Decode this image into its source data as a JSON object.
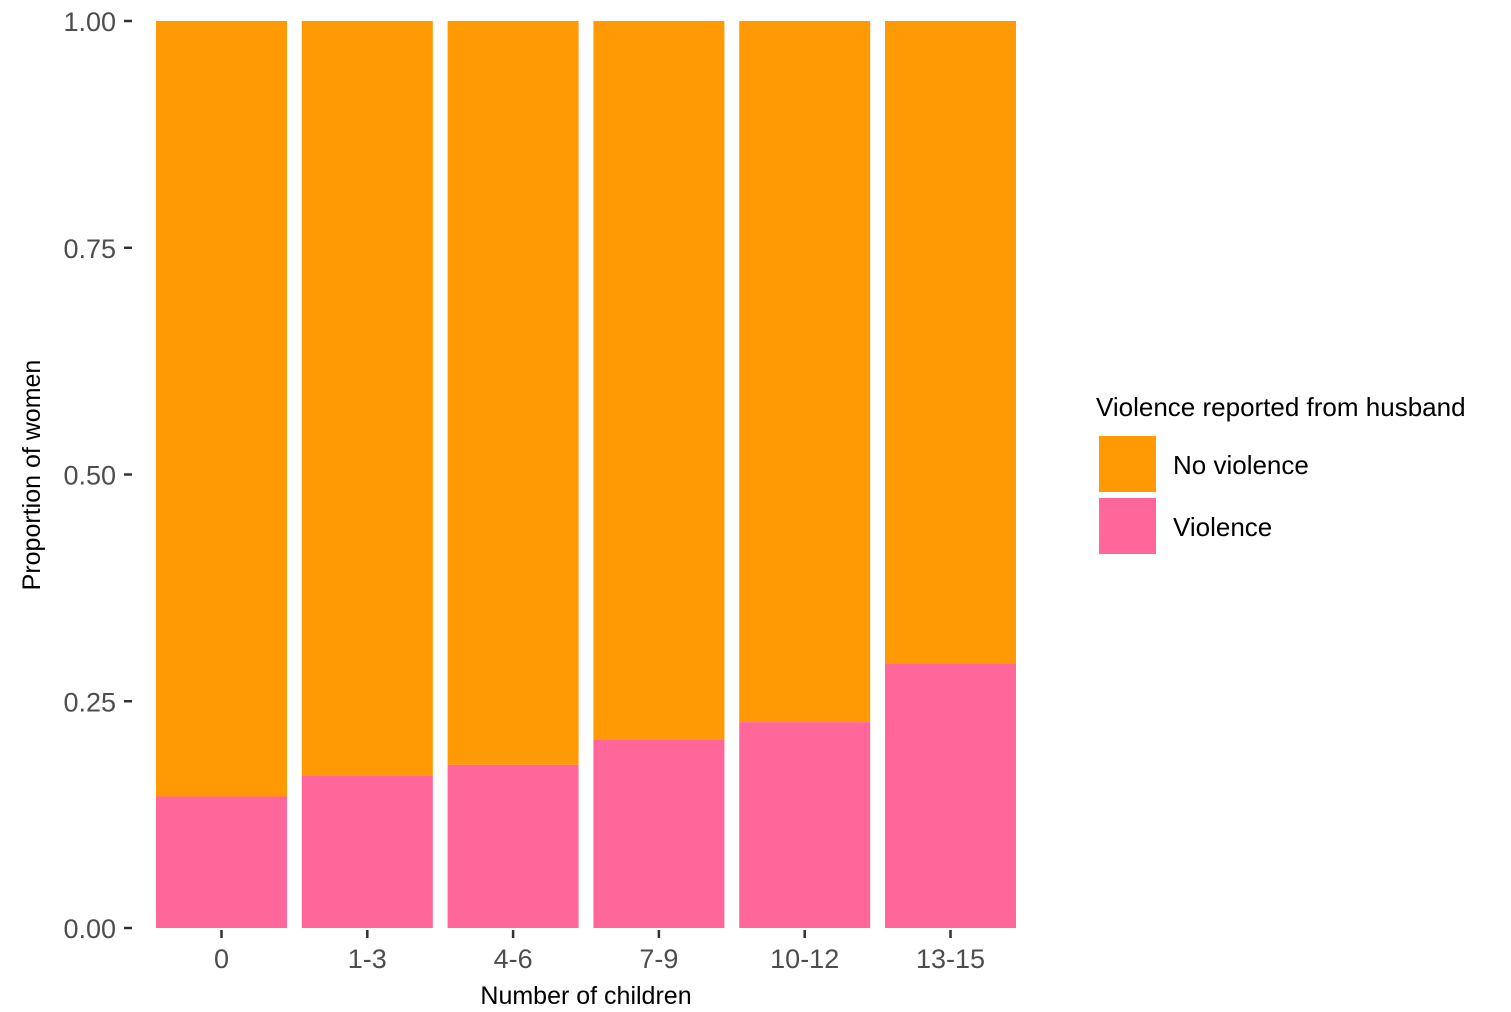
{
  "chart_data": {
    "type": "bar",
    "stacked": true,
    "categories": [
      "0",
      "1-3",
      "4-6",
      "7-9",
      "10-12",
      "13-15"
    ],
    "series": [
      {
        "name": "Violence",
        "color": "#ff6699",
        "values": [
          0.145,
          0.168,
          0.18,
          0.208,
          0.227,
          0.292
        ]
      },
      {
        "name": "No violence",
        "color": "#ff9a05",
        "values": [
          0.855,
          0.832,
          0.82,
          0.792,
          0.773,
          0.708
        ]
      }
    ],
    "xlabel": "Number of children",
    "ylabel": "Proportion of women",
    "ylim": [
      0,
      1
    ],
    "yticks": [
      0,
      0.25,
      0.5,
      0.75,
      1
    ],
    "ytick_labels": [
      "0.00",
      "0.25",
      "0.50",
      "0.75",
      "1.00"
    ],
    "grid": false,
    "legend": {
      "title": "Violence reported from husband",
      "position": "right",
      "entries": [
        {
          "label": "No violence",
          "color": "#ff9a05"
        },
        {
          "label": "Violence",
          "color": "#ff6699"
        }
      ]
    }
  }
}
